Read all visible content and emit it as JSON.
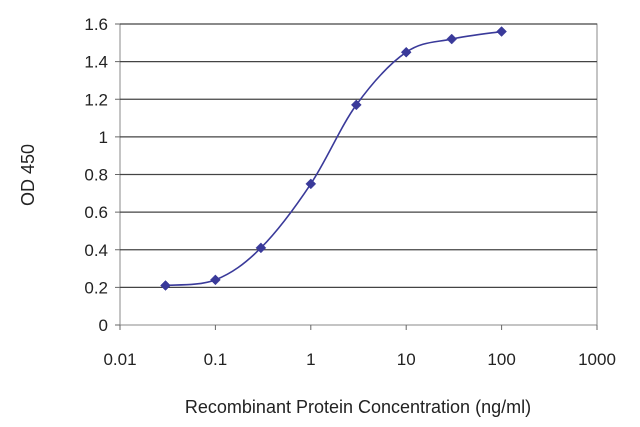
{
  "chart_data": {
    "type": "scatter",
    "xlabel": "Recombinant Protein Concentration (ng/ml)",
    "ylabel": "OD 450",
    "x_scale": "log",
    "xlim": [
      0.01,
      1000
    ],
    "ylim": [
      0,
      1.6
    ],
    "x_ticks": [
      0.01,
      0.1,
      1,
      10,
      100,
      1000
    ],
    "x_tick_labels": [
      "0.01",
      "0.1",
      "1",
      "10",
      "100",
      "1000"
    ],
    "y_ticks": [
      0,
      0.2,
      0.4,
      0.6,
      0.8,
      1,
      1.2,
      1.4,
      1.6
    ],
    "y_tick_labels": [
      "0",
      "0.2",
      "0.4",
      "0.6",
      "0.8",
      "1",
      "1.2",
      "1.4",
      "1.6"
    ],
    "grid": "horizontal",
    "fitted_curve": true,
    "series": [
      {
        "x": [
          0.03,
          0.1,
          0.3,
          1,
          3,
          10,
          30,
          100
        ],
        "y": [
          0.21,
          0.24,
          0.41,
          0.75,
          1.17,
          1.45,
          1.52,
          1.56
        ],
        "color": "#3a3a9a",
        "marker": "diamond"
      }
    ]
  }
}
